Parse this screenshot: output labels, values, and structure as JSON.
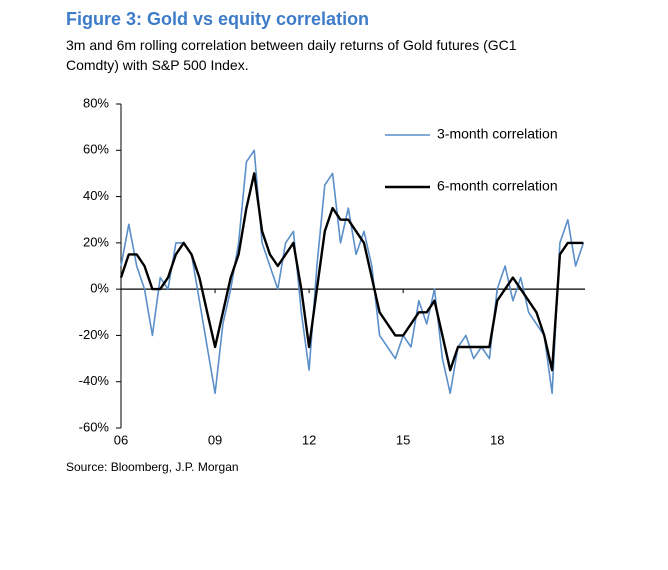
{
  "chart_data": {
    "type": "line",
    "title": "Figure 3: Gold vs equity correlation",
    "subtitle": "3m and 6m rolling correlation between daily returns of Gold futures (GC1 Comdty) with S&P 500 Index.",
    "source": "Source: Bloomberg, J.P. Morgan",
    "x": [
      2006,
      2006.25,
      2006.5,
      2006.75,
      2007,
      2007.25,
      2007.5,
      2007.75,
      2008,
      2008.25,
      2008.5,
      2008.75,
      2009,
      2009.25,
      2009.5,
      2009.75,
      2010,
      2010.25,
      2010.5,
      2010.75,
      2011,
      2011.25,
      2011.5,
      2011.75,
      2012,
      2012.25,
      2012.5,
      2012.75,
      2013,
      2013.25,
      2013.5,
      2013.75,
      2014,
      2014.25,
      2014.5,
      2014.75,
      2015,
      2015.25,
      2015.5,
      2015.75,
      2016,
      2016.25,
      2016.5,
      2016.75,
      2017,
      2017.25,
      2017.5,
      2017.75,
      2018,
      2018.25,
      2018.5,
      2018.75,
      2019,
      2019.25,
      2019.5,
      2019.75,
      2020,
      2020.25,
      2020.5,
      2020.75
    ],
    "series": [
      {
        "name": "3-month correlation",
        "color": "#5b8fc9",
        "width": 1.6,
        "values": [
          10,
          28,
          10,
          0,
          -20,
          5,
          0,
          20,
          20,
          15,
          -5,
          -25,
          -45,
          -15,
          0,
          20,
          55,
          60,
          20,
          10,
          0,
          20,
          25,
          -10,
          -35,
          10,
          45,
          50,
          20,
          35,
          15,
          25,
          10,
          -20,
          -25,
          -30,
          -20,
          -25,
          -5,
          -15,
          0,
          -30,
          -45,
          -25,
          -20,
          -30,
          -25,
          -30,
          0,
          10,
          -5,
          5,
          -10,
          -15,
          -20,
          -45,
          20,
          30,
          10,
          20
        ]
      },
      {
        "name": "6-month correlation",
        "color": "#000000",
        "width": 2.4,
        "values": [
          5,
          15,
          15,
          10,
          0,
          0,
          5,
          15,
          20,
          15,
          5,
          -10,
          -25,
          -10,
          5,
          15,
          35,
          50,
          25,
          15,
          10,
          15,
          20,
          0,
          -25,
          0,
          25,
          35,
          30,
          30,
          25,
          20,
          5,
          -10,
          -15,
          -20,
          -20,
          -15,
          -10,
          -10,
          -5,
          -20,
          -35,
          -25,
          -25,
          -25,
          -25,
          -25,
          -5,
          0,
          5,
          0,
          -5,
          -10,
          -20,
          -35,
          15,
          20,
          20,
          20
        ]
      }
    ],
    "xlim": [
      2006,
      2020.8
    ],
    "xticks": [
      {
        "value": 2006,
        "label": "06"
      },
      {
        "value": 2009,
        "label": "09"
      },
      {
        "value": 2012,
        "label": "12"
      },
      {
        "value": 2015,
        "label": "15"
      },
      {
        "value": 2018,
        "label": "18"
      }
    ],
    "ylim": [
      -60,
      80
    ],
    "yticks": [
      {
        "value": -60,
        "label": "-60%"
      },
      {
        "value": -40,
        "label": "-40%"
      },
      {
        "value": -20,
        "label": "-20%"
      },
      {
        "value": 0,
        "label": "0%"
      },
      {
        "value": 20,
        "label": "20%"
      },
      {
        "value": 40,
        "label": "40%"
      },
      {
        "value": 60,
        "label": "60%"
      },
      {
        "value": 80,
        "label": "80%"
      }
    ],
    "legend": "top-right"
  }
}
